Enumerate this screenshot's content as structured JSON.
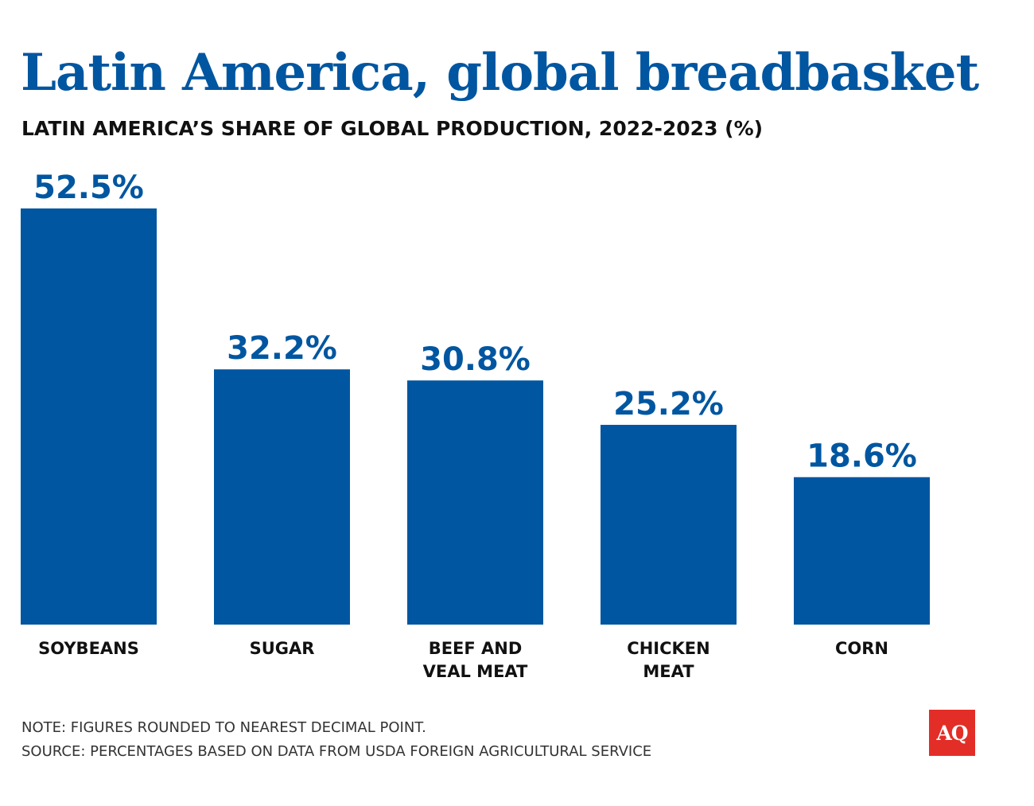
{
  "header": {
    "title": "Latin America, global breadbasket",
    "subtitle": "LATIN AMERICA’S SHARE OF GLOBAL PRODUCTION, 2022-2023 (%)"
  },
  "chart_data": {
    "type": "bar",
    "title": "Latin America, global breadbasket",
    "subtitle": "LATIN AMERICA’S SHARE OF GLOBAL PRODUCTION, 2022-2023 (%)",
    "categories": [
      [
        "SOYBEANS"
      ],
      [
        "SUGAR"
      ],
      [
        "BEEF AND",
        "VEAL MEAT"
      ],
      [
        "CHICKEN",
        "MEAT"
      ],
      [
        "CORN"
      ]
    ],
    "values": [
      52.5,
      32.2,
      30.8,
      25.2,
      18.6
    ],
    "value_labels": [
      "52.5%",
      "32.2%",
      "30.8%",
      "25.2%",
      "18.6%"
    ],
    "xlabel": "",
    "ylabel": "",
    "ylim": [
      0,
      52.5
    ],
    "grid": false,
    "legend": "none",
    "bar_color": "#0056a0",
    "label_color": "#0056a0"
  },
  "footer": {
    "note": "NOTE: FIGURES ROUNDED TO NEAREST DECIMAL POINT.",
    "source": "SOURCE: PERCENTAGES BASED ON DATA FROM USDA FOREIGN AGRICULTURAL SERVICE"
  },
  "logo": {
    "text": "AQ",
    "color": "#e32d27"
  }
}
